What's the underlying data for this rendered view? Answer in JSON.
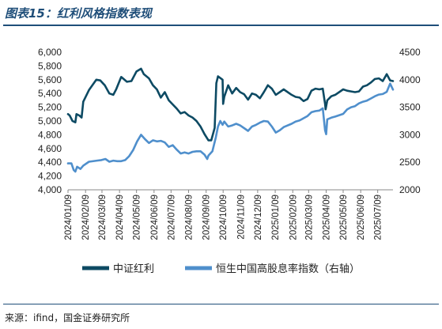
{
  "header": {
    "title": "图表15：红利风格指数表现"
  },
  "footer": {
    "source": "来源：ifind，国金证券研究所"
  },
  "colors": {
    "series1": "#0d4a63",
    "series2": "#4f8fcc",
    "accent": "#1f4e79"
  },
  "chart_data": {
    "type": "line",
    "title": "",
    "xlabel": "",
    "ylabel": "",
    "ylabel_right": "",
    "legend_position": "bottom",
    "grid": false,
    "x_ticks": [
      "2024/01/09",
      "2024/02/09",
      "2024/03/09",
      "2024/04/09",
      "2024/05/09",
      "2024/06/09",
      "2024/07/09",
      "2024/08/09",
      "2024/09/09",
      "2024/10/09",
      "2024/11/09",
      "2024/12/09",
      "2025/01/09",
      "2025/02/09",
      "2025/03/09",
      "2025/04/09",
      "2025/05/09",
      "2025/06/09",
      "2025/07/09"
    ],
    "y_left": {
      "min": 4000,
      "max": 6000,
      "ticks": [
        "4,000",
        "4,200",
        "4,400",
        "4,600",
        "4,800",
        "5,000",
        "5,200",
        "5,400",
        "5,600",
        "5,800",
        "6,000"
      ]
    },
    "y_right": {
      "min": 2000,
      "max": 4500,
      "ticks": [
        "2000",
        "2500",
        "3000",
        "3500",
        "4000",
        "4500"
      ]
    },
    "series": [
      {
        "name": "中证红利",
        "axis": "left",
        "points": [
          [
            "2024-01-09",
            5100
          ],
          [
            "2024-01-12",
            5080
          ],
          [
            "2024-01-17",
            5000
          ],
          [
            "2024-01-22",
            4980
          ],
          [
            "2024-01-24",
            5100
          ],
          [
            "2024-01-29",
            5080
          ],
          [
            "2024-02-02",
            5050
          ],
          [
            "2024-02-05",
            5280
          ],
          [
            "2024-02-15",
            5450
          ],
          [
            "2024-02-28",
            5600
          ],
          [
            "2024-03-06",
            5590
          ],
          [
            "2024-03-14",
            5520
          ],
          [
            "2024-03-22",
            5400
          ],
          [
            "2024-03-29",
            5380
          ],
          [
            "2024-04-03",
            5460
          ],
          [
            "2024-04-12",
            5640
          ],
          [
            "2024-04-22",
            5570
          ],
          [
            "2024-04-30",
            5580
          ],
          [
            "2024-05-09",
            5720
          ],
          [
            "2024-05-17",
            5760
          ],
          [
            "2024-05-22",
            5680
          ],
          [
            "2024-05-31",
            5620
          ],
          [
            "2024-06-07",
            5520
          ],
          [
            "2024-06-14",
            5460
          ],
          [
            "2024-06-21",
            5340
          ],
          [
            "2024-06-28",
            5420
          ],
          [
            "2024-07-05",
            5300
          ],
          [
            "2024-07-12",
            5240
          ],
          [
            "2024-07-19",
            5180
          ],
          [
            "2024-07-26",
            5110
          ],
          [
            "2024-08-02",
            5130
          ],
          [
            "2024-08-09",
            5080
          ],
          [
            "2024-08-16",
            5050
          ],
          [
            "2024-08-23",
            5000
          ],
          [
            "2024-08-30",
            4920
          ],
          [
            "2024-09-06",
            4810
          ],
          [
            "2024-09-13",
            4720
          ],
          [
            "2024-09-18",
            4720
          ],
          [
            "2024-09-24",
            4900
          ],
          [
            "2024-09-27",
            5550
          ],
          [
            "2024-09-30",
            5650
          ],
          [
            "2024-10-08",
            5600
          ],
          [
            "2024-10-09",
            5250
          ],
          [
            "2024-10-11",
            5350
          ],
          [
            "2024-10-18",
            5520
          ],
          [
            "2024-10-25",
            5400
          ],
          [
            "2024-11-01",
            5480
          ],
          [
            "2024-11-08",
            5420
          ],
          [
            "2024-11-15",
            5390
          ],
          [
            "2024-11-22",
            5310
          ],
          [
            "2024-11-29",
            5400
          ],
          [
            "2024-12-06",
            5380
          ],
          [
            "2024-12-13",
            5330
          ],
          [
            "2024-12-20",
            5420
          ],
          [
            "2024-12-27",
            5520
          ],
          [
            "2025-01-03",
            5470
          ],
          [
            "2025-01-10",
            5380
          ],
          [
            "2025-01-17",
            5420
          ],
          [
            "2025-01-24",
            5460
          ],
          [
            "2025-02-07",
            5380
          ],
          [
            "2025-02-14",
            5350
          ],
          [
            "2025-02-21",
            5340
          ],
          [
            "2025-02-28",
            5290
          ],
          [
            "2025-03-07",
            5320
          ],
          [
            "2025-03-14",
            5440
          ],
          [
            "2025-03-21",
            5470
          ],
          [
            "2025-03-28",
            5460
          ],
          [
            "2025-04-03",
            5470
          ],
          [
            "2025-04-07",
            5250
          ],
          [
            "2025-04-08",
            5170
          ],
          [
            "2025-04-11",
            5300
          ],
          [
            "2025-04-18",
            5360
          ],
          [
            "2025-04-25",
            5380
          ],
          [
            "2025-05-09",
            5460
          ],
          [
            "2025-05-16",
            5440
          ],
          [
            "2025-05-23",
            5430
          ],
          [
            "2025-05-30",
            5420
          ],
          [
            "2025-06-06",
            5430
          ],
          [
            "2025-06-13",
            5500
          ],
          [
            "2025-06-20",
            5520
          ],
          [
            "2025-06-27",
            5560
          ],
          [
            "2025-07-04",
            5610
          ],
          [
            "2025-07-11",
            5620
          ],
          [
            "2025-07-18",
            5580
          ],
          [
            "2025-07-25",
            5680
          ],
          [
            "2025-07-31",
            5590
          ],
          [
            "2025-08-05",
            5580
          ]
        ]
      },
      {
        "name": "恒生中国高股息率指数（右轴）",
        "axis": "right",
        "points": [
          [
            "2024-01-09",
            2480
          ],
          [
            "2024-01-15",
            2480
          ],
          [
            "2024-01-19",
            2360
          ],
          [
            "2024-01-22",
            2330
          ],
          [
            "2024-01-25",
            2420
          ],
          [
            "2024-01-31",
            2380
          ],
          [
            "2024-02-05",
            2440
          ],
          [
            "2024-02-15",
            2510
          ],
          [
            "2024-02-29",
            2530
          ],
          [
            "2024-03-08",
            2540
          ],
          [
            "2024-03-15",
            2560
          ],
          [
            "2024-03-22",
            2510
          ],
          [
            "2024-03-29",
            2530
          ],
          [
            "2024-04-05",
            2520
          ],
          [
            "2024-04-12",
            2520
          ],
          [
            "2024-04-19",
            2540
          ],
          [
            "2024-04-26",
            2610
          ],
          [
            "2024-05-03",
            2720
          ],
          [
            "2024-05-10",
            2880
          ],
          [
            "2024-05-17",
            3000
          ],
          [
            "2024-05-24",
            2920
          ],
          [
            "2024-05-31",
            2850
          ],
          [
            "2024-06-07",
            2900
          ],
          [
            "2024-06-14",
            2880
          ],
          [
            "2024-06-21",
            2890
          ],
          [
            "2024-06-28",
            2860
          ],
          [
            "2024-07-05",
            2780
          ],
          [
            "2024-07-12",
            2810
          ],
          [
            "2024-07-19",
            2730
          ],
          [
            "2024-07-26",
            2660
          ],
          [
            "2024-08-02",
            2680
          ],
          [
            "2024-08-09",
            2660
          ],
          [
            "2024-08-16",
            2690
          ],
          [
            "2024-08-23",
            2700
          ],
          [
            "2024-08-30",
            2700
          ],
          [
            "2024-09-06",
            2640
          ],
          [
            "2024-09-11",
            2560
          ],
          [
            "2024-09-13",
            2620
          ],
          [
            "2024-09-20",
            2700
          ],
          [
            "2024-09-26",
            2950
          ],
          [
            "2024-09-30",
            3150
          ],
          [
            "2024-10-04",
            3250
          ],
          [
            "2024-10-08",
            3180
          ],
          [
            "2024-10-11",
            3240
          ],
          [
            "2024-10-18",
            3150
          ],
          [
            "2024-10-25",
            3170
          ],
          [
            "2024-11-01",
            3200
          ],
          [
            "2024-11-08",
            3170
          ],
          [
            "2024-11-15",
            3120
          ],
          [
            "2024-11-22",
            3070
          ],
          [
            "2024-11-29",
            3150
          ],
          [
            "2024-12-06",
            3180
          ],
          [
            "2024-12-13",
            3220
          ],
          [
            "2024-12-20",
            3250
          ],
          [
            "2024-12-27",
            3240
          ],
          [
            "2025-01-03",
            3150
          ],
          [
            "2025-01-10",
            3040
          ],
          [
            "2025-01-17",
            3080
          ],
          [
            "2025-01-24",
            3140
          ],
          [
            "2025-02-07",
            3200
          ],
          [
            "2025-02-14",
            3240
          ],
          [
            "2025-02-21",
            3260
          ],
          [
            "2025-02-28",
            3300
          ],
          [
            "2025-03-07",
            3340
          ],
          [
            "2025-03-14",
            3410
          ],
          [
            "2025-03-21",
            3430
          ],
          [
            "2025-03-28",
            3440
          ],
          [
            "2025-04-03",
            3480
          ],
          [
            "2025-04-07",
            3080
          ],
          [
            "2025-04-09",
            3010
          ],
          [
            "2025-04-11",
            3280
          ],
          [
            "2025-04-18",
            3310
          ],
          [
            "2025-04-25",
            3330
          ],
          [
            "2025-05-09",
            3380
          ],
          [
            "2025-05-16",
            3460
          ],
          [
            "2025-05-23",
            3500
          ],
          [
            "2025-05-30",
            3520
          ],
          [
            "2025-06-06",
            3570
          ],
          [
            "2025-06-13",
            3600
          ],
          [
            "2025-06-20",
            3620
          ],
          [
            "2025-06-27",
            3660
          ],
          [
            "2025-07-04",
            3700
          ],
          [
            "2025-07-11",
            3730
          ],
          [
            "2025-07-18",
            3740
          ],
          [
            "2025-07-25",
            3780
          ],
          [
            "2025-07-31",
            3930
          ],
          [
            "2025-08-05",
            3820
          ]
        ]
      }
    ]
  }
}
